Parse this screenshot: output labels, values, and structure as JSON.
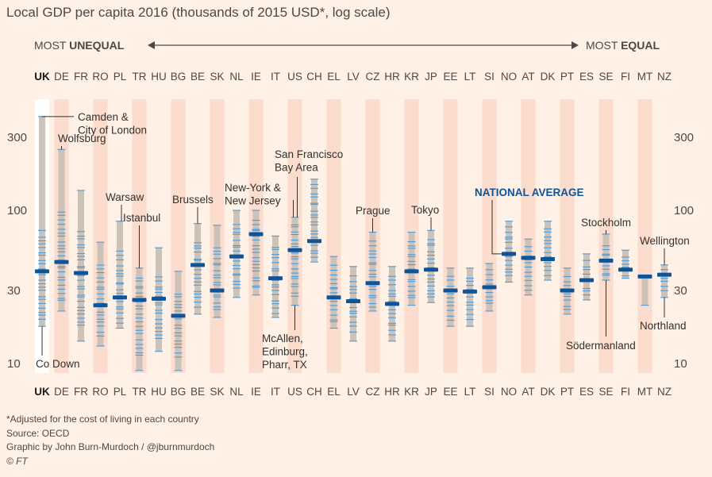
{
  "title": "Local GDP per capita 2016 (thousands of 2015 USD*, log scale)",
  "direction": {
    "left_prefix": "MOST ",
    "left_bold": "UNEQUAL",
    "right_prefix": "MOST ",
    "right_bold": "EQUAL"
  },
  "footer": {
    "note": "*Adjusted for the cost of living in each country",
    "source": "Source: OECD",
    "credit": "Graphic by John Burn-Murdoch / @jburnmurdoch",
    "copyright": "© FT"
  },
  "colors": {
    "background": "#fff1e5",
    "band": "#fbdccd",
    "range_bar": "#cdc2b8",
    "region_line": "#4e9bd8",
    "national_average": "#0f5499",
    "annotation": "#33302e"
  },
  "chart_data": {
    "type": "range-strip",
    "scale": "log",
    "ylim": [
      8.5,
      450
    ],
    "yticks": [
      10,
      30,
      100,
      300
    ],
    "ytick_labels": [
      "10",
      "30",
      "100",
      "300"
    ],
    "highlight": "UK",
    "average_label": "NATIONAL AVERAGE",
    "countries": [
      {
        "code": "UK",
        "min": 17.5,
        "max": 410,
        "avg": 40,
        "hi": 75,
        "lo": 19
      },
      {
        "code": "DE",
        "min": 22,
        "max": 250,
        "avg": 46,
        "hi": 100,
        "lo": 25
      },
      {
        "code": "FR",
        "min": 14,
        "max": 135,
        "avg": 39,
        "hi": 75,
        "lo": 17
      },
      {
        "code": "RO",
        "min": 13,
        "max": 62,
        "avg": 24,
        "hi": 45,
        "lo": 15
      },
      {
        "code": "PL",
        "min": 17,
        "max": 85,
        "avg": 27,
        "hi": 55,
        "lo": 18
      },
      {
        "code": "TR",
        "min": 9,
        "max": 42,
        "avg": 26,
        "hi": 38,
        "lo": 11
      },
      {
        "code": "HU",
        "min": 12,
        "max": 57,
        "avg": 26.5,
        "hi": 38,
        "lo": 14
      },
      {
        "code": "BG",
        "min": 9,
        "max": 40,
        "avg": 20.5,
        "hi": 30,
        "lo": 11
      },
      {
        "code": "BE",
        "min": 21,
        "max": 82,
        "avg": 44,
        "hi": 65,
        "lo": 23
      },
      {
        "code": "SK",
        "min": 20,
        "max": 80,
        "avg": 30,
        "hi": 60,
        "lo": 22
      },
      {
        "code": "NL",
        "min": 27,
        "max": 100,
        "avg": 50,
        "hi": 85,
        "lo": 30
      },
      {
        "code": "IE",
        "min": 28,
        "max": 100,
        "avg": 70,
        "hi": 90,
        "lo": 30
      },
      {
        "code": "IT",
        "min": 20,
        "max": 68,
        "avg": 36,
        "hi": 60,
        "lo": 21
      },
      {
        "code": "US",
        "min": 24,
        "max": 90,
        "avg": 55,
        "hi": 85,
        "lo": 27
      },
      {
        "code": "CH",
        "min": 46,
        "max": 160,
        "avg": 63,
        "hi": 150,
        "lo": 48
      },
      {
        "code": "EL",
        "min": 17,
        "max": 50,
        "avg": 27,
        "hi": 45,
        "lo": 18
      },
      {
        "code": "LV",
        "min": 14,
        "max": 43,
        "avg": 25.5,
        "hi": 38,
        "lo": 16
      },
      {
        "code": "CZ",
        "min": 22,
        "max": 72,
        "avg": 33.5,
        "hi": 65,
        "lo": 23
      },
      {
        "code": "HR",
        "min": 14,
        "max": 43,
        "avg": 24.5,
        "hi": 38,
        "lo": 15
      },
      {
        "code": "KR",
        "min": 24,
        "max": 72,
        "avg": 40,
        "hi": 65,
        "lo": 26
      },
      {
        "code": "JP",
        "min": 25,
        "max": 74,
        "avg": 41,
        "hi": 68,
        "lo": 26
      },
      {
        "code": "EE",
        "min": 17.5,
        "max": 42,
        "avg": 30,
        "hi": 38,
        "lo": 19
      },
      {
        "code": "LT",
        "min": 17.5,
        "max": 42,
        "avg": 29.5,
        "hi": 38,
        "lo": 19
      },
      {
        "code": "SI",
        "min": 22,
        "max": 45,
        "avg": 31.5,
        "hi": 42,
        "lo": 24
      },
      {
        "code": "NO",
        "min": 34,
        "max": 85,
        "avg": 52,
        "hi": 80,
        "lo": 36
      },
      {
        "code": "AT",
        "min": 28,
        "max": 65,
        "avg": 49,
        "hi": 60,
        "lo": 30
      },
      {
        "code": "DK",
        "min": 35,
        "max": 85,
        "avg": 48,
        "hi": 80,
        "lo": 37
      },
      {
        "code": "PT",
        "min": 21,
        "max": 42,
        "avg": 30,
        "hi": 38,
        "lo": 22
      },
      {
        "code": "ES",
        "min": 26,
        "max": 52,
        "avg": 35,
        "hi": 48,
        "lo": 27
      },
      {
        "code": "SE",
        "min": 35,
        "max": 70,
        "avg": 47,
        "hi": 62,
        "lo": 36
      },
      {
        "code": "FI",
        "min": 36,
        "max": 55,
        "avg": 41,
        "hi": 52,
        "lo": 37
      },
      {
        "code": "MT",
        "min": 24,
        "max": 37,
        "avg": 37,
        "hi": 37,
        "lo": 37
      },
      {
        "code": "NZ",
        "min": 27,
        "max": 44,
        "avg": 38,
        "hi": 42,
        "lo": 29
      }
    ],
    "annotations": [
      {
        "text": [
          "Camden &",
          "City of London"
        ],
        "country": "UK",
        "value": 410,
        "side": "right",
        "role": "max"
      },
      {
        "text": [
          "Co Down"
        ],
        "country": "UK",
        "value": 17.5,
        "side": "below",
        "role": "min"
      },
      {
        "text": [
          "Wolfsburg"
        ],
        "country": "DE",
        "value": 250,
        "side": "above",
        "role": "max"
      },
      {
        "text": [
          "Warsaw"
        ],
        "country": "PL",
        "value": 85,
        "side": "above",
        "role": "max"
      },
      {
        "text": [
          "Istanbul"
        ],
        "country": "TR",
        "value": 42,
        "side": "above",
        "role": "max"
      },
      {
        "text": [
          "Brussels"
        ],
        "country": "BE",
        "value": 82,
        "side": "above",
        "role": "max"
      },
      {
        "text": [
          "New-York &",
          "New Jersey"
        ],
        "country": "US",
        "value": 90,
        "side": "above-left",
        "role": "max"
      },
      {
        "text": [
          "San Francisco",
          "Bay Area"
        ],
        "country": "US",
        "value": 90,
        "side": "above-right",
        "role": "max"
      },
      {
        "text": [
          "McAllen,",
          "Edinburg,",
          "Pharr, TX"
        ],
        "country": "US",
        "value": 24,
        "side": "below",
        "role": "min"
      },
      {
        "text": [
          "Prague"
        ],
        "country": "CZ",
        "value": 72,
        "side": "above",
        "role": "max"
      },
      {
        "text": [
          "Tokyo"
        ],
        "country": "JP",
        "value": 74,
        "side": "above",
        "role": "max"
      },
      {
        "text": [
          "Stockholm"
        ],
        "country": "SE",
        "value": 70,
        "side": "above",
        "role": "max"
      },
      {
        "text": [
          "Södermanland"
        ],
        "country": "SE",
        "value": 35,
        "side": "below",
        "role": "min"
      },
      {
        "text": [
          "Wellington"
        ],
        "country": "NZ",
        "value": 44,
        "side": "above",
        "role": "max"
      },
      {
        "text": [
          "Northland"
        ],
        "country": "NZ",
        "value": 27,
        "side": "below",
        "role": "min"
      }
    ]
  }
}
